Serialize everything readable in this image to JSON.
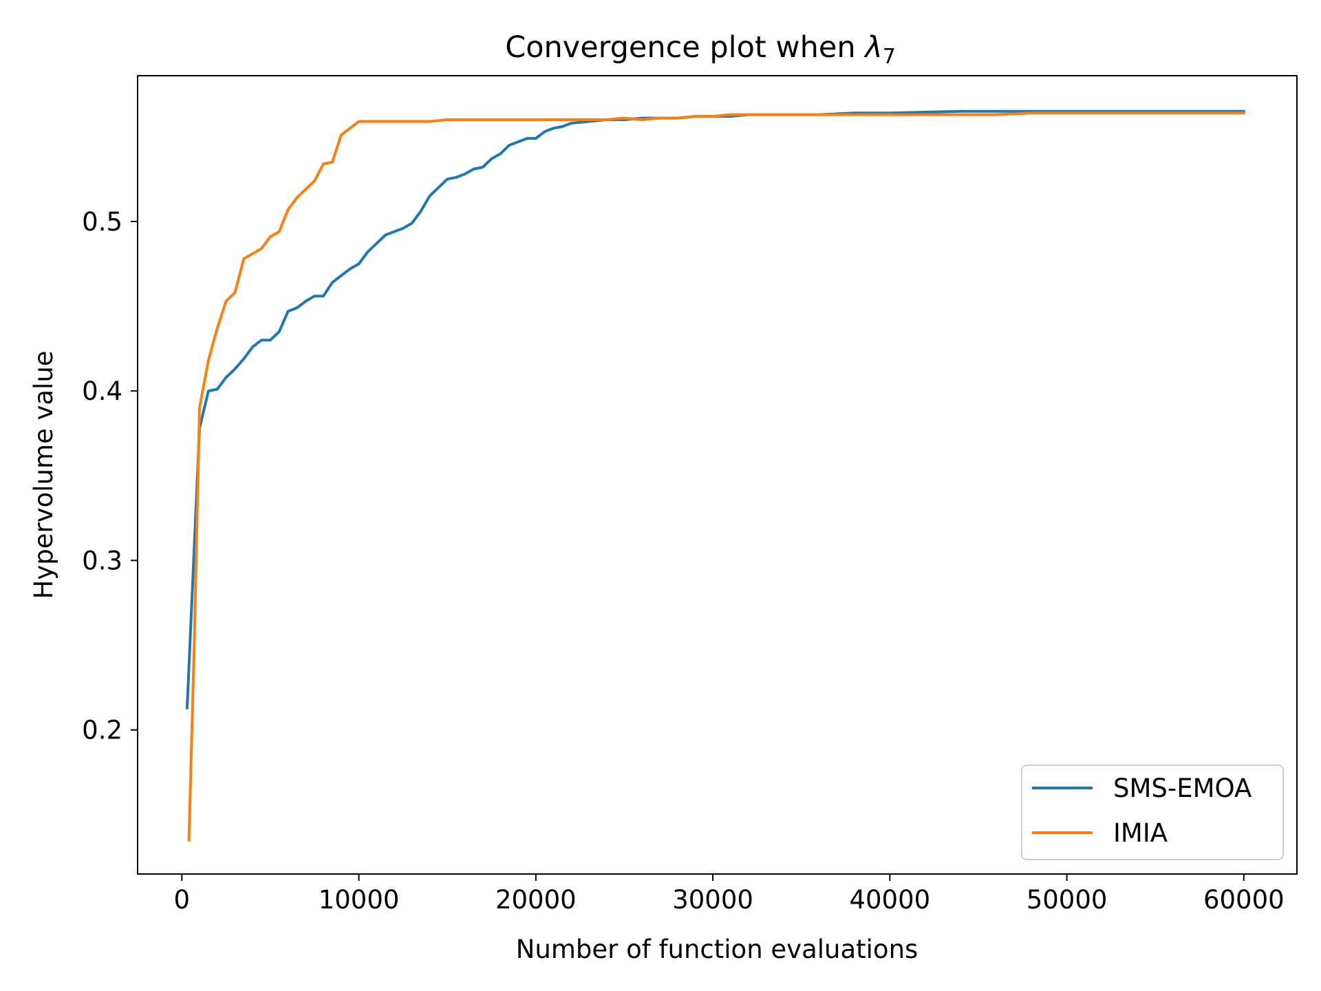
{
  "chart_data": {
    "type": "line",
    "title": "Convergence plot when ",
    "title_symbol": "λ",
    "title_subscript": "7",
    "xlabel": "Number of function evaluations",
    "ylabel": "Hypervolume value",
    "xlim": [
      -2500,
      63000
    ],
    "ylim": [
      0.115,
      0.586
    ],
    "xticks": [
      0,
      10000,
      20000,
      30000,
      40000,
      50000,
      60000
    ],
    "xtick_labels": [
      "0",
      "10000",
      "20000",
      "30000",
      "40000",
      "50000",
      "60000"
    ],
    "yticks": [
      0.2,
      0.3,
      0.4,
      0.5
    ],
    "ytick_labels": [
      "0.2",
      "0.3",
      "0.4",
      "0.5"
    ],
    "grid": false,
    "legend_position": "lower-right",
    "series": [
      {
        "name": "SMS-EMOA",
        "color": "#1f77b4",
        "x": [
          300,
          1000,
          1500,
          2000,
          2500,
          3000,
          3500,
          4000,
          4500,
          5000,
          5500,
          6000,
          6500,
          7000,
          7500,
          8000,
          8500,
          9000,
          9500,
          10000,
          10500,
          11000,
          11500,
          12000,
          12500,
          13000,
          13500,
          14000,
          14500,
          15000,
          15500,
          16000,
          16500,
          17000,
          17500,
          18000,
          18500,
          19000,
          19500,
          20000,
          20500,
          21000,
          21500,
          22000,
          23000,
          24000,
          25000,
          26000,
          27000,
          28000,
          29000,
          30000,
          31000,
          32000,
          34000,
          36000,
          38000,
          40000,
          44000,
          48000,
          52000,
          56000,
          60000
        ],
        "values": [
          0.213,
          0.378,
          0.4,
          0.401,
          0.408,
          0.413,
          0.419,
          0.426,
          0.43,
          0.43,
          0.435,
          0.447,
          0.449,
          0.453,
          0.456,
          0.456,
          0.464,
          0.468,
          0.472,
          0.475,
          0.482,
          0.487,
          0.492,
          0.494,
          0.496,
          0.499,
          0.506,
          0.515,
          0.52,
          0.525,
          0.526,
          0.528,
          0.531,
          0.532,
          0.537,
          0.54,
          0.545,
          0.547,
          0.549,
          0.549,
          0.553,
          0.555,
          0.556,
          0.558,
          0.559,
          0.56,
          0.56,
          0.561,
          0.561,
          0.561,
          0.562,
          0.562,
          0.562,
          0.563,
          0.563,
          0.563,
          0.564,
          0.564,
          0.565,
          0.565,
          0.565,
          0.565,
          0.565
        ]
      },
      {
        "name": "IMIA",
        "color": "#ff7f0e",
        "x": [
          400,
          700,
          1000,
          1500,
          2000,
          2500,
          3000,
          3500,
          4000,
          4500,
          5000,
          5500,
          6000,
          6500,
          7000,
          7500,
          8000,
          8500,
          9000,
          9500,
          10000,
          10500,
          11000,
          11500,
          12000,
          13000,
          14000,
          15000,
          16000,
          17000,
          18000,
          20000,
          22000,
          24000,
          25000,
          26000,
          27000,
          28000,
          29000,
          30000,
          31000,
          32000,
          34000,
          36000,
          38000,
          40000,
          42000,
          44000,
          46000,
          48000,
          50000,
          52000,
          54000,
          56000,
          58000,
          60000
        ],
        "values": [
          0.135,
          0.25,
          0.39,
          0.418,
          0.437,
          0.453,
          0.458,
          0.478,
          0.481,
          0.484,
          0.491,
          0.494,
          0.507,
          0.514,
          0.519,
          0.524,
          0.534,
          0.535,
          0.551,
          0.555,
          0.559,
          0.559,
          0.559,
          0.559,
          0.559,
          0.559,
          0.559,
          0.56,
          0.56,
          0.56,
          0.56,
          0.56,
          0.56,
          0.56,
          0.561,
          0.56,
          0.561,
          0.561,
          0.562,
          0.562,
          0.563,
          0.563,
          0.563,
          0.563,
          0.563,
          0.563,
          0.563,
          0.563,
          0.563,
          0.564,
          0.564,
          0.564,
          0.564,
          0.564,
          0.564,
          0.564
        ]
      }
    ]
  }
}
